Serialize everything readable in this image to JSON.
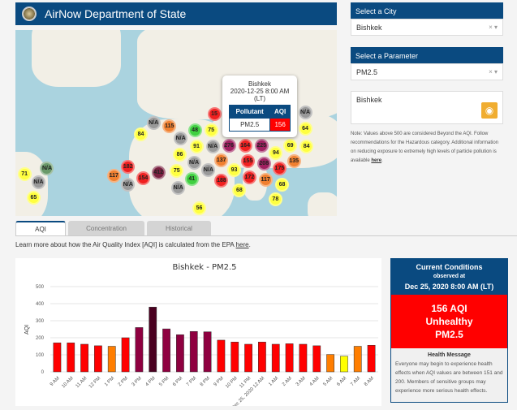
{
  "header": {
    "title": "AirNow Department of State"
  },
  "map": {
    "popup": {
      "city": "Bishkek",
      "datetime": "2020-12-25 8:00 AM",
      "tz": "(LT)",
      "col_pollutant": "Pollutant",
      "col_aqi": "AQI",
      "pollutant": "PM2.5",
      "aqi": "156"
    },
    "markers": [
      {
        "v": "N/A",
        "c": "#999"
      },
      {
        "v": "115",
        "c": "#f08030"
      },
      {
        "v": "84",
        "c": "#ffff40"
      },
      {
        "v": "75",
        "c": "#ffff40"
      },
      {
        "v": "48",
        "c": "#40d040"
      },
      {
        "v": "N/A",
        "c": "#999"
      },
      {
        "v": "91",
        "c": "#ffff40"
      },
      {
        "v": "N/A",
        "c": "#999"
      },
      {
        "v": "N/A",
        "c": "#999"
      },
      {
        "v": "86",
        "c": "#ffff40"
      },
      {
        "v": "75",
        "c": "#ffff40"
      },
      {
        "v": "41",
        "c": "#40d040"
      },
      {
        "v": "N/A",
        "c": "#999"
      },
      {
        "v": "412",
        "c": "#7a2040"
      },
      {
        "v": "182",
        "c": "#f02020"
      },
      {
        "v": "117",
        "c": "#f08030"
      },
      {
        "v": "N/A",
        "c": "#999"
      },
      {
        "v": "154",
        "c": "#f02020"
      },
      {
        "v": "N/A",
        "c": "#6a9a6a"
      },
      {
        "v": "N/A",
        "c": "#999"
      },
      {
        "v": "71",
        "c": "#ffff40"
      },
      {
        "v": "65",
        "c": "#ffff40"
      },
      {
        "v": "56",
        "c": "#ffff40"
      },
      {
        "v": "15",
        "c": "#f02020"
      },
      {
        "v": "225",
        "c": "#a02060"
      },
      {
        "v": "N/A",
        "c": "#999"
      },
      {
        "v": "164",
        "c": "#f02020"
      },
      {
        "v": "276",
        "c": "#a02060"
      },
      {
        "v": "137",
        "c": "#f08030"
      },
      {
        "v": "155",
        "c": "#f02020"
      },
      {
        "v": "208",
        "c": "#a02060"
      },
      {
        "v": "188",
        "c": "#f02020"
      },
      {
        "v": "93",
        "c": "#ffff40"
      },
      {
        "v": "172",
        "c": "#f02020"
      },
      {
        "v": "68",
        "c": "#ffff40"
      },
      {
        "v": "117",
        "c": "#f08030"
      },
      {
        "v": "94",
        "c": "#ffff40"
      },
      {
        "v": "175",
        "c": "#f02020"
      },
      {
        "v": "135",
        "c": "#f08030"
      },
      {
        "v": "68",
        "c": "#ffff40"
      },
      {
        "v": "78",
        "c": "#ffff40"
      },
      {
        "v": "69",
        "c": "#ffff40"
      },
      {
        "v": "64",
        "c": "#ffff40"
      },
      {
        "v": "84",
        "c": "#ffff40"
      },
      {
        "v": "N/A",
        "c": "#999"
      }
    ]
  },
  "sidebar": {
    "city_header": "Select a City",
    "city_value": "Bishkek",
    "param_header": "Select a Parameter",
    "param_value": "PM2.5",
    "clear_icon": "×",
    "dropdown_icon": "▾",
    "city_box": "Bishkek",
    "note": "Note: Values above 500 are considered Beyond the AQI. Follow recommendations for the Hazardous category. Additional information on reducing exposure to extremely high levels of particle pollution is available ",
    "note_link": "here",
    "note_end": "."
  },
  "tabs": [
    {
      "label": "AQI",
      "active": true
    },
    {
      "label": "Concentration"
    },
    {
      "label": "Historical"
    }
  ],
  "learn": {
    "text": "Learn more about how the Air Quality Index [AQI] is calculated from the EPA ",
    "link": "here",
    "end": "."
  },
  "chart_data": {
    "type": "bar",
    "title": "Bishkek - PM2.5",
    "ylabel": "AQI",
    "xlabel": "",
    "ylim": [
      0,
      500
    ],
    "yticks": [
      0,
      100,
      200,
      300,
      400,
      500
    ],
    "grid": true,
    "categories": [
      "9 AM",
      "10 AM",
      "11 AM",
      "12 PM",
      "1 PM",
      "2 PM",
      "3 PM",
      "4 PM",
      "5 PM",
      "6 PM",
      "7 PM",
      "8 PM",
      "9 PM",
      "10 PM",
      "11 PM",
      "Dec 25, 2020 12 AM",
      "1 AM",
      "2 AM",
      "3 AM",
      "4 AM",
      "5 AM",
      "6 AM",
      "7 AM",
      "8 AM"
    ],
    "values": [
      170,
      170,
      162,
      153,
      150,
      200,
      260,
      380,
      252,
      218,
      237,
      235,
      186,
      175,
      162,
      175,
      162,
      165,
      162,
      153,
      102,
      92,
      150,
      156
    ],
    "colors": [
      "#ff0000",
      "#ff0000",
      "#ff0000",
      "#ff0000",
      "#ff7e00",
      "#ff0000",
      "#8f0040",
      "#4a0020",
      "#8f0040",
      "#8f0040",
      "#8f0040",
      "#8f0040",
      "#ff0000",
      "#ff0000",
      "#ff0000",
      "#ff0000",
      "#ff0000",
      "#ff0000",
      "#ff0000",
      "#ff0000",
      "#ff7e00",
      "#ffff00",
      "#ff7e00",
      "#ff0000"
    ]
  },
  "current": {
    "title": "Current Conditions",
    "observed": "observed at",
    "datetime": "Dec 25, 2020 8:00 AM (LT)",
    "aqi": "156 AQI",
    "category": "Unhealthy",
    "pollutant": "PM2.5",
    "color": "#ff0000",
    "health_title": "Health Message",
    "health_text": "Everyone may begin to experience health effects when AQI values are between 151 and 200. Members of sensitive groups may experience more serious health effects."
  }
}
